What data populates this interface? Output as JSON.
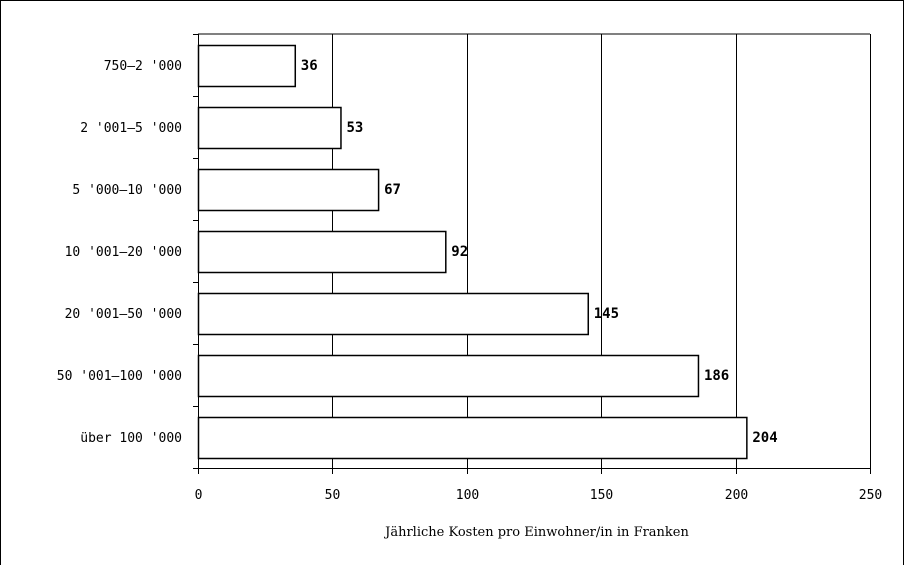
{
  "chart_data": {
    "type": "bar",
    "orientation": "horizontal",
    "categories": [
      "750–2 '000",
      "2 '001–5 '000",
      "5 '000–10 '000",
      "10 '001–20 '000",
      "20 '001–50 '000",
      "50 '001–100 '000",
      "über 100 '000"
    ],
    "values": [
      36,
      53,
      67,
      92,
      145,
      186,
      204
    ],
    "data_labels": [
      "36",
      "53",
      "67",
      "92",
      "145",
      "186",
      "204"
    ],
    "xlabel": "Jährliche Kosten pro Einwohner/in in Franken",
    "ylabel": "",
    "xlim": [
      0,
      250
    ],
    "xticks": [
      0,
      50,
      100,
      150,
      200,
      250
    ],
    "xtick_labels": [
      "0",
      "50",
      "100",
      "150",
      "200",
      "250"
    ],
    "grid": "vertical",
    "legend": "none",
    "bar_fill": "#ffffff",
    "bar_stroke": "#000000",
    "grid_color": "#000000"
  }
}
